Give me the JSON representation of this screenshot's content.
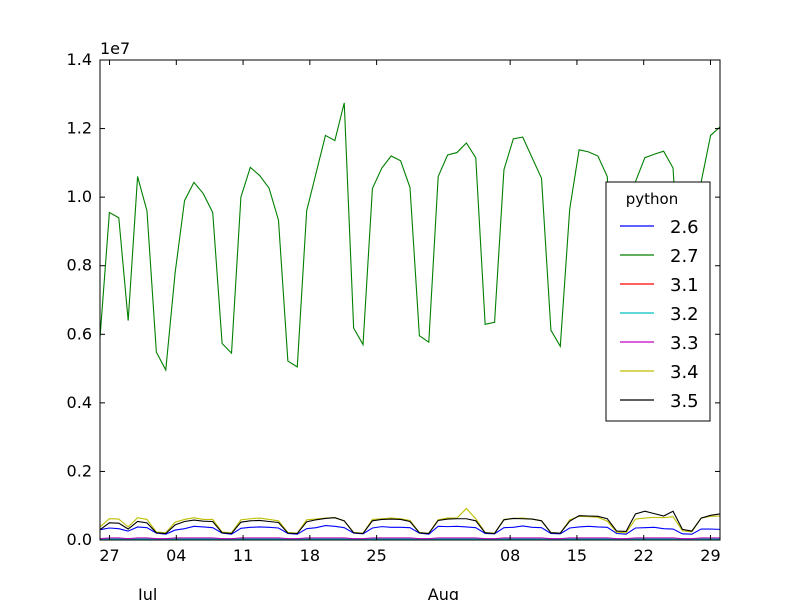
{
  "chart_data": {
    "type": "line",
    "exponent_label": "1e7",
    "ylim": [
      0,
      14000000
    ],
    "yticks": [
      {
        "value": 0,
        "label": "0.0"
      },
      {
        "value": 2000000,
        "label": "0.2"
      },
      {
        "value": 4000000,
        "label": "0.4"
      },
      {
        "value": 6000000,
        "label": "0.6"
      },
      {
        "value": 8000000,
        "label": "0.8"
      },
      {
        "value": 10000000,
        "label": "1.0"
      },
      {
        "value": 12000000,
        "label": "1.2"
      },
      {
        "value": 14000000,
        "label": "1.4"
      }
    ],
    "x_start": "2016-06-26",
    "x_end": "2016-08-30",
    "xticks": [
      {
        "date": "2016-06-27",
        "label": "27"
      },
      {
        "date": "2016-07-04",
        "label": "04"
      },
      {
        "date": "2016-07-11",
        "label": "11"
      },
      {
        "date": "2016-07-18",
        "label": "18"
      },
      {
        "date": "2016-07-25",
        "label": "25"
      },
      {
        "date": "2016-08-08",
        "label": "08"
      },
      {
        "date": "2016-08-15",
        "label": "15"
      },
      {
        "date": "2016-08-22",
        "label": "22"
      },
      {
        "date": "2016-08-29",
        "label": "29"
      }
    ],
    "month_labels": [
      {
        "date": "2016-07-01",
        "label": "Jul"
      },
      {
        "date": "2016-08-01",
        "label": "Aug"
      }
    ],
    "legend": {
      "title": "python",
      "position": "right"
    },
    "series": [
      {
        "name": "2.6",
        "color": "#0000ff",
        "values": [
          300000,
          350000,
          330000,
          260000,
          380000,
          360000,
          200000,
          170000,
          290000,
          330000,
          400000,
          380000,
          360000,
          200000,
          170000,
          340000,
          370000,
          380000,
          370000,
          350000,
          190000,
          170000,
          330000,
          360000,
          420000,
          400000,
          360000,
          200000,
          180000,
          350000,
          390000,
          370000,
          370000,
          360000,
          200000,
          170000,
          400000,
          390000,
          400000,
          380000,
          360000,
          190000,
          180000,
          360000,
          370000,
          410000,
          370000,
          360000,
          190000,
          180000,
          350000,
          380000,
          400000,
          380000,
          370000,
          190000,
          170000,
          350000,
          360000,
          370000,
          330000,
          320000,
          180000,
          170000,
          320000,
          320000,
          310000
        ]
      },
      {
        "name": "2.7",
        "color": "#008000",
        "values": [
          5900000,
          9550000,
          9400000,
          6400000,
          10600000,
          9600000,
          5480000,
          4960000,
          7800000,
          9900000,
          10430000,
          10100000,
          9550000,
          5730000,
          5450000,
          10000000,
          10870000,
          10630000,
          10260000,
          9330000,
          5220000,
          5050000,
          9600000,
          10700000,
          11800000,
          11650000,
          12750000,
          6180000,
          5700000,
          10250000,
          10850000,
          11200000,
          11060000,
          10280000,
          5960000,
          5770000,
          10600000,
          11230000,
          11300000,
          11580000,
          11150000,
          6290000,
          6350000,
          10800000,
          11700000,
          11750000,
          11150000,
          10550000,
          6120000,
          5650000,
          9650000,
          11380000,
          11320000,
          11200000,
          10600000,
          5900000,
          5630000,
          10450000,
          11150000,
          11250000,
          11340000,
          10850000,
          6500000,
          6050000,
          10450000,
          11800000,
          12050000
        ]
      },
      {
        "name": "3.1",
        "color": "#ff0000",
        "values": [
          20000,
          20000,
          20000,
          20000,
          20000,
          20000,
          20000,
          20000,
          20000,
          20000,
          20000,
          20000,
          20000,
          20000,
          20000,
          20000,
          20000,
          20000,
          20000,
          20000,
          20000,
          20000,
          20000,
          20000,
          20000,
          20000,
          20000,
          20000,
          20000,
          20000,
          20000,
          20000,
          20000,
          20000,
          20000,
          20000,
          20000,
          20000,
          20000,
          20000,
          20000,
          20000,
          20000,
          20000,
          20000,
          20000,
          20000,
          20000,
          20000,
          20000,
          20000,
          20000,
          20000,
          20000,
          20000,
          20000,
          20000,
          20000,
          20000,
          20000,
          20000,
          20000,
          20000,
          20000,
          20000,
          20000,
          20000
        ]
      },
      {
        "name": "3.2",
        "color": "#00bfbf",
        "values": [
          30000,
          30000,
          30000,
          30000,
          30000,
          30000,
          30000,
          30000,
          30000,
          30000,
          30000,
          30000,
          30000,
          30000,
          30000,
          30000,
          30000,
          30000,
          30000,
          30000,
          30000,
          30000,
          30000,
          30000,
          30000,
          30000,
          30000,
          30000,
          30000,
          30000,
          30000,
          30000,
          30000,
          30000,
          30000,
          30000,
          30000,
          30000,
          30000,
          30000,
          30000,
          30000,
          30000,
          30000,
          30000,
          30000,
          30000,
          30000,
          30000,
          30000,
          30000,
          30000,
          30000,
          30000,
          30000,
          30000,
          30000,
          30000,
          30000,
          30000,
          30000,
          30000,
          30000,
          30000,
          30000,
          30000,
          30000
        ]
      },
      {
        "name": "3.3",
        "color": "#bf00bf",
        "values": [
          40000,
          60000,
          60000,
          40000,
          60000,
          60000,
          40000,
          40000,
          60000,
          60000,
          60000,
          60000,
          60000,
          40000,
          40000,
          60000,
          60000,
          60000,
          60000,
          60000,
          40000,
          40000,
          60000,
          60000,
          60000,
          60000,
          60000,
          40000,
          40000,
          60000,
          60000,
          60000,
          60000,
          60000,
          40000,
          40000,
          60000,
          60000,
          60000,
          60000,
          60000,
          40000,
          40000,
          60000,
          60000,
          60000,
          60000,
          60000,
          40000,
          40000,
          60000,
          60000,
          60000,
          60000,
          60000,
          40000,
          40000,
          60000,
          60000,
          60000,
          60000,
          60000,
          40000,
          40000,
          60000,
          60000,
          60000
        ]
      },
      {
        "name": "3.4",
        "color": "#bfbf00",
        "values": [
          380000,
          620000,
          610000,
          380000,
          650000,
          600000,
          230000,
          210000,
          520000,
          600000,
          650000,
          600000,
          600000,
          230000,
          210000,
          590000,
          620000,
          640000,
          600000,
          560000,
          220000,
          200000,
          590000,
          610000,
          640000,
          650000,
          560000,
          220000,
          200000,
          600000,
          620000,
          640000,
          620000,
          570000,
          220000,
          200000,
          590000,
          640000,
          640000,
          920000,
          620000,
          220000,
          200000,
          600000,
          630000,
          640000,
          610000,
          560000,
          220000,
          200000,
          590000,
          690000,
          680000,
          660000,
          550000,
          230000,
          210000,
          610000,
          640000,
          660000,
          650000,
          680000,
          270000,
          240000,
          640000,
          690000,
          700000
        ]
      },
      {
        "name": "3.5",
        "color": "#000000",
        "values": [
          300000,
          500000,
          490000,
          320000,
          540000,
          500000,
          210000,
          190000,
          440000,
          540000,
          580000,
          550000,
          540000,
          210000,
          190000,
          520000,
          560000,
          570000,
          540000,
          510000,
          200000,
          190000,
          530000,
          590000,
          630000,
          650000,
          560000,
          210000,
          190000,
          560000,
          600000,
          610000,
          600000,
          540000,
          210000,
          190000,
          570000,
          610000,
          620000,
          620000,
          560000,
          210000,
          190000,
          590000,
          630000,
          620000,
          610000,
          560000,
          210000,
          200000,
          550000,
          710000,
          700000,
          690000,
          620000,
          260000,
          250000,
          760000,
          840000,
          770000,
          700000,
          840000,
          310000,
          260000,
          640000,
          720000,
          760000
        ]
      }
    ]
  }
}
